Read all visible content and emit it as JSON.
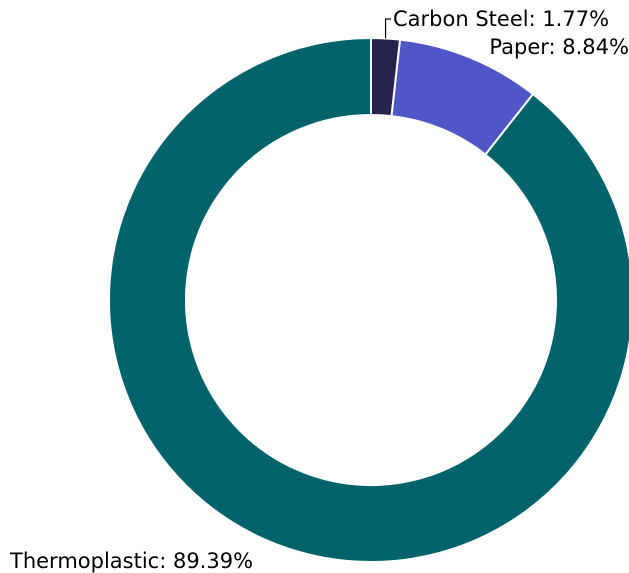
{
  "chart_data": {
    "type": "pie",
    "style": "donut",
    "start_angle": "12 o'clock",
    "direction": "clockwise",
    "title": "",
    "slices": [
      {
        "label": "Carbon Steel",
        "value": 1.77,
        "display": "Carbon Steel: 1.77%",
        "color": "#25244a"
      },
      {
        "label": "Paper",
        "value": 8.84,
        "display": "Paper: 8.84%",
        "color": "#5156c6"
      },
      {
        "label": "Thermoplastic",
        "value": 89.39,
        "display": "Thermoplastic: 89.39%",
        "color": "#00636c"
      }
    ]
  }
}
